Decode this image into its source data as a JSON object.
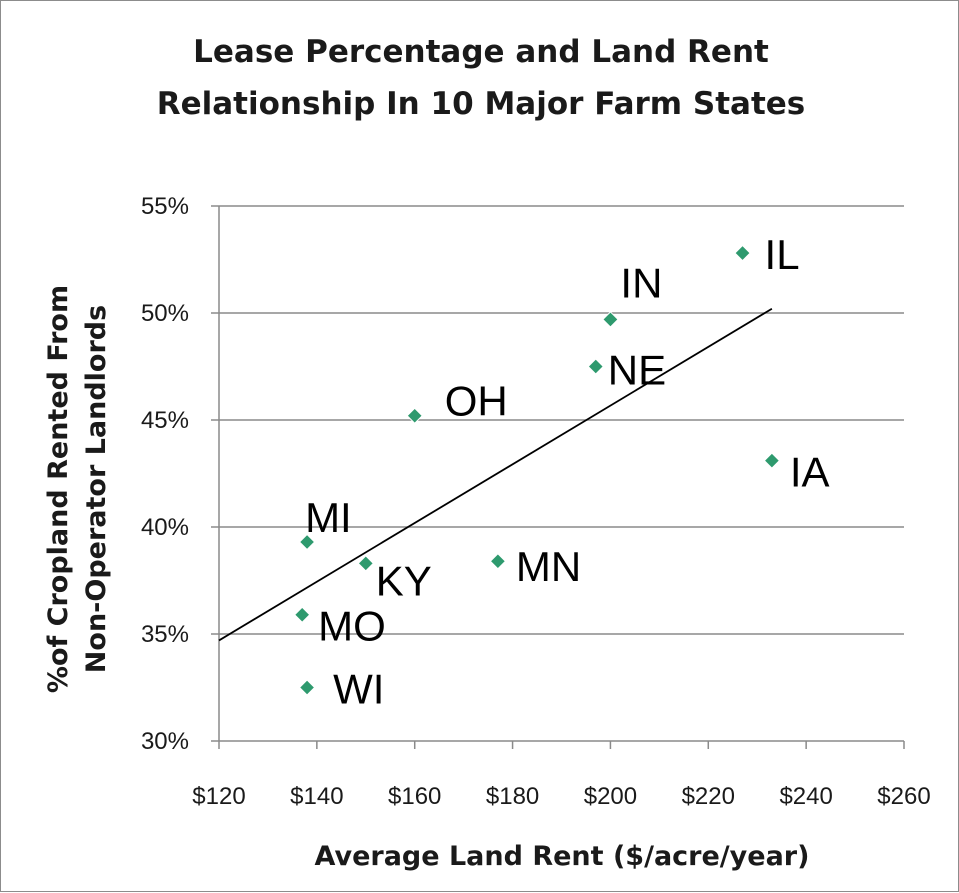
{
  "chart_data": {
    "type": "scatter",
    "title": [
      "Lease Percentage and Land Rent",
      "Relationship In 10 Major Farm States"
    ],
    "xlabel": "Average Land Rent ($/acre/year)",
    "ylabel": [
      "%of Cropland Rented From",
      "Non-Operator Landlords"
    ],
    "xlim": [
      120,
      260
    ],
    "ylim": [
      30,
      55
    ],
    "xticks": [
      120,
      140,
      160,
      180,
      200,
      220,
      240,
      260
    ],
    "xtick_labels": [
      "$120",
      "$140",
      "$160",
      "$180",
      "$200",
      "$220",
      "$240",
      "$260"
    ],
    "yticks": [
      30,
      35,
      40,
      45,
      50,
      55
    ],
    "ytick_labels": [
      "30%",
      "35%",
      "40%",
      "45%",
      "50%",
      "55%"
    ],
    "grid": "horizontal",
    "marker_color": "#2e9a6e",
    "points": [
      {
        "label": "IL",
        "x": 227,
        "y": 52.8
      },
      {
        "label": "IN",
        "x": 200,
        "y": 49.7
      },
      {
        "label": "NE",
        "x": 197,
        "y": 47.5
      },
      {
        "label": "OH",
        "x": 160,
        "y": 45.2
      },
      {
        "label": "IA",
        "x": 233,
        "y": 43.1
      },
      {
        "label": "MI",
        "x": 138,
        "y": 39.3
      },
      {
        "label": "KY",
        "x": 150,
        "y": 38.3
      },
      {
        "label": "MN",
        "x": 177,
        "y": 38.4
      },
      {
        "label": "MO",
        "x": 137,
        "y": 35.9
      },
      {
        "label": "WI",
        "x": 138,
        "y": 32.5
      }
    ],
    "trendline": {
      "x": [
        120,
        233
      ],
      "y": [
        34.7,
        50.2
      ]
    }
  }
}
